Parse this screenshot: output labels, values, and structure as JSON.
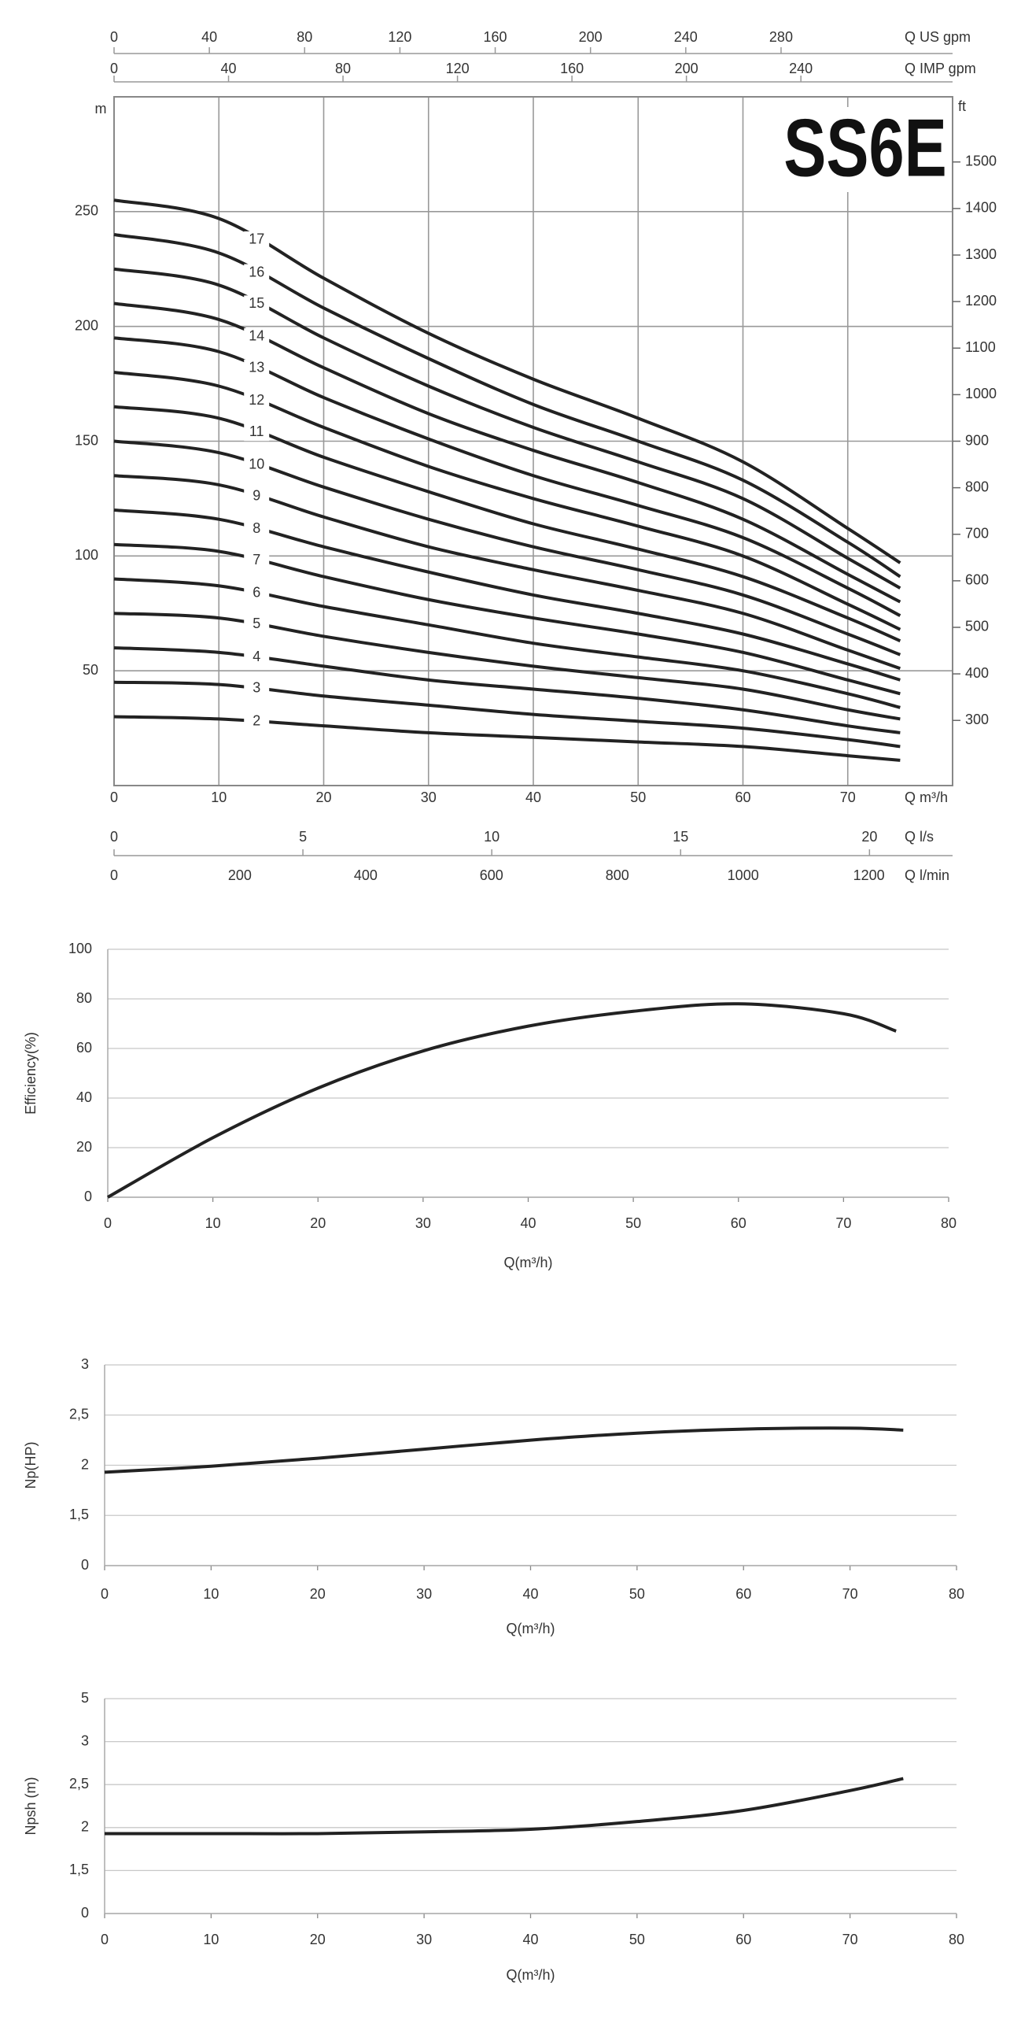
{
  "chart_data": [
    {
      "type": "line",
      "title": "SS6E",
      "xlabel": "Q m³/h",
      "ylabel": "m",
      "y2label": "ft",
      "x": [
        0,
        10,
        20,
        30,
        40,
        50,
        60,
        70,
        75
      ],
      "xlim": [
        0,
        80
      ],
      "xticks": [
        0,
        10,
        20,
        30,
        40,
        50,
        60,
        70
      ],
      "ylim": [
        0,
        300
      ],
      "yticks": [
        50,
        100,
        150,
        200,
        250
      ],
      "y2lim": [
        160,
        1640
      ],
      "y2ticks": [
        300,
        400,
        500,
        600,
        700,
        800,
        900,
        1000,
        1100,
        1200,
        1300,
        1400,
        1500
      ],
      "grid": "both",
      "color": "#222",
      "extra_x_axes": [
        {
          "label": "Q US gpm",
          "position": "top",
          "xlim": [
            0,
            352
          ],
          "xticks": [
            0,
            40,
            80,
            120,
            160,
            200,
            240,
            280
          ]
        },
        {
          "label": "Q IMP gpm",
          "position": "top",
          "xlim": [
            0,
            293
          ],
          "xticks": [
            0,
            40,
            80,
            120,
            160,
            200,
            240
          ]
        },
        {
          "label": "Q l/s",
          "position": "bottom",
          "xlim": [
            0,
            22.2
          ],
          "xticks": [
            0,
            5,
            10,
            15,
            20
          ]
        },
        {
          "label": "Q l/min",
          "position": "bottom",
          "xlim": [
            0,
            1333
          ],
          "xticks": [
            0,
            200,
            400,
            600,
            800,
            1000,
            1200
          ]
        }
      ],
      "series": [
        {
          "name": "2",
          "values": [
            30,
            29,
            26,
            23,
            21,
            19,
            17,
            13,
            11
          ]
        },
        {
          "name": "3",
          "values": [
            45,
            44,
            39,
            35,
            31,
            28,
            25,
            20,
            17
          ]
        },
        {
          "name": "4",
          "values": [
            60,
            58,
            52,
            46,
            42,
            38,
            33,
            26,
            23
          ]
        },
        {
          "name": "5",
          "values": [
            75,
            73,
            65,
            58,
            52,
            47,
            42,
            33,
            29
          ]
        },
        {
          "name": "6",
          "values": [
            90,
            87,
            78,
            70,
            62,
            56,
            50,
            40,
            34
          ]
        },
        {
          "name": "7",
          "values": [
            105,
            102,
            91,
            81,
            73,
            66,
            58,
            46,
            40
          ]
        },
        {
          "name": "8",
          "values": [
            120,
            116,
            104,
            93,
            83,
            75,
            66,
            53,
            46
          ]
        },
        {
          "name": "9",
          "values": [
            135,
            131,
            117,
            104,
            94,
            85,
            75,
            59,
            51
          ]
        },
        {
          "name": "10",
          "values": [
            150,
            145,
            130,
            116,
            104,
            94,
            83,
            66,
            57
          ]
        },
        {
          "name": "11",
          "values": [
            165,
            160,
            143,
            128,
            114,
            103,
            91,
            73,
            63
          ]
        },
        {
          "name": "12",
          "values": [
            180,
            174,
            156,
            139,
            125,
            113,
            100,
            79,
            68
          ]
        },
        {
          "name": "13",
          "values": [
            195,
            189,
            169,
            151,
            135,
            122,
            108,
            86,
            74
          ]
        },
        {
          "name": "14",
          "values": [
            210,
            203,
            182,
            162,
            146,
            132,
            116,
            92,
            80
          ]
        },
        {
          "name": "15",
          "values": [
            225,
            218,
            195,
            174,
            156,
            141,
            125,
            99,
            86
          ]
        },
        {
          "name": "16",
          "values": [
            240,
            232,
            208,
            186,
            166,
            150,
            133,
            106,
            91
          ]
        },
        {
          "name": "17",
          "values": [
            255,
            247,
            221,
            197,
            177,
            160,
            141,
            112,
            97
          ]
        }
      ]
    },
    {
      "type": "line",
      "xlabel": "Q(m³/h)",
      "ylabel": "Efficiency(%)",
      "x": [
        0,
        10,
        20,
        30,
        40,
        50,
        60,
        70,
        75
      ],
      "values": [
        0,
        24,
        44,
        59,
        69,
        75,
        78,
        74,
        67
      ],
      "xlim": [
        0,
        80
      ],
      "xticks": [
        0,
        10,
        20,
        30,
        40,
        50,
        60,
        70,
        80
      ],
      "ylim": [
        0,
        100
      ],
      "yticks": [
        0,
        20,
        40,
        60,
        80,
        100
      ],
      "grid": "y",
      "color": "#222"
    },
    {
      "type": "line",
      "xlabel": "Q(m³/h)",
      "ylabel": "Np(HP)",
      "yscale": "piecewise",
      "x": [
        0,
        10,
        20,
        30,
        40,
        50,
        60,
        70,
        75
      ],
      "values": [
        1.93,
        1.99,
        2.07,
        2.16,
        2.25,
        2.32,
        2.36,
        2.37,
        2.35
      ],
      "xlim": [
        0,
        80
      ],
      "xticks": [
        0,
        10,
        20,
        30,
        40,
        50,
        60,
        70,
        80
      ],
      "ylim": [
        0,
        3
      ],
      "yticks": [
        0,
        {
          "value": 1.5,
          "label": "1,5"
        },
        2,
        {
          "value": 2.5,
          "label": "2,5"
        },
        3
      ],
      "grid": "y",
      "color": "#222"
    },
    {
      "type": "line",
      "xlabel": "Q(m³/h)",
      "ylabel": "Npsh (m)",
      "yscale": "piecewise",
      "x": [
        0,
        10,
        20,
        30,
        40,
        50,
        60,
        70,
        75
      ],
      "values": [
        1.93,
        1.93,
        1.93,
        1.95,
        1.98,
        2.07,
        2.2,
        2.43,
        2.57
      ],
      "xlim": [
        0,
        80
      ],
      "xticks": [
        0,
        10,
        20,
        30,
        40,
        50,
        60,
        70,
        80
      ],
      "ylim": [
        0,
        5
      ],
      "yticks": [
        0,
        {
          "value": 1.5,
          "label": "1,5"
        },
        2,
        {
          "value": 2.5,
          "label": "2,5"
        },
        3,
        5
      ],
      "grid": "y",
      "color": "#222"
    }
  ]
}
